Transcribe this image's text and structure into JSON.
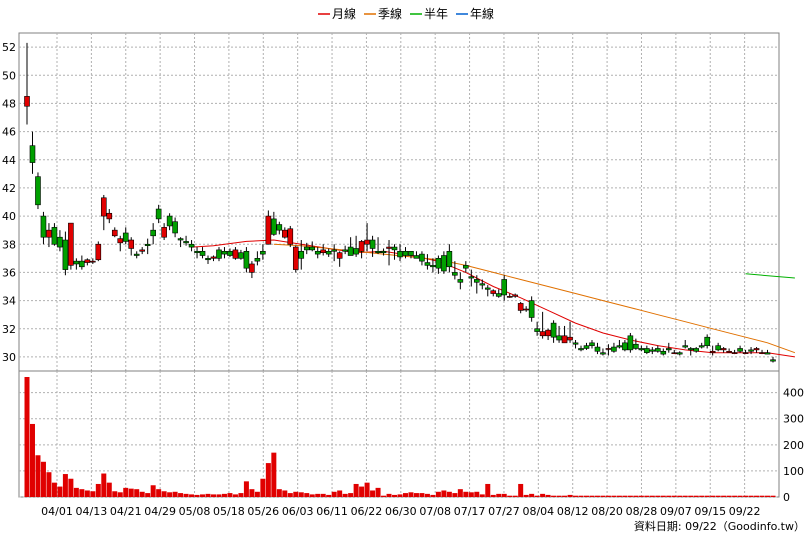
{
  "chart_data": {
    "type": "candlestick",
    "legend": {
      "position": "top-center",
      "items": [
        {
          "label": "月線",
          "color": "#e00000"
        },
        {
          "label": "季線",
          "color": "#e07000"
        },
        {
          "label": "半年",
          "color": "#00b000"
        },
        {
          "label": "年線",
          "color": "#0060d0"
        }
      ]
    },
    "x_tick_labels": [
      "04/01",
      "04/13",
      "04/21",
      "04/29",
      "05/08",
      "05/18",
      "05/26",
      "06/03",
      "06/11",
      "06/22",
      "06/30",
      "07/08",
      "07/17",
      "07/27",
      "08/04",
      "08/12",
      "08/20",
      "08/28",
      "09/07",
      "09/15",
      "09/22"
    ],
    "price_axis": {
      "min": 29,
      "max": 53,
      "ticks": [
        30,
        32,
        34,
        36,
        38,
        40,
        42,
        44,
        46,
        48,
        50,
        52
      ]
    },
    "volume_axis": {
      "min": 0,
      "max": 460,
      "ticks": [
        0,
        100,
        200,
        300,
        400
      ]
    },
    "grid": true,
    "colors": {
      "up": "#e00000",
      "down": "#00a000",
      "volume": "#e00000",
      "grid": "#b0b0b0",
      "plot_bg": "#ffffff"
    },
    "candles": [
      [
        47.8,
        52.3,
        46.5,
        48.5,
        460
      ],
      [
        45.0,
        46.0,
        43.0,
        43.8,
        280
      ],
      [
        42.8,
        43.1,
        40.5,
        40.8,
        160
      ],
      [
        40.0,
        40.3,
        38.0,
        38.5,
        135
      ],
      [
        38.5,
        39.5,
        37.8,
        39.0,
        95
      ],
      [
        39.2,
        39.5,
        37.9,
        38.0,
        55
      ],
      [
        38.5,
        39.0,
        37.5,
        37.8,
        40
      ],
      [
        38.3,
        38.9,
        35.8,
        36.2,
        88
      ],
      [
        36.5,
        39.5,
        36.2,
        39.5,
        70
      ],
      [
        36.8,
        37.0,
        36.2,
        36.6,
        35
      ],
      [
        36.8,
        37.2,
        36.2,
        36.4,
        30
      ],
      [
        36.7,
        37.0,
        36.5,
        36.9,
        25
      ],
      [
        36.8,
        37.0,
        36.6,
        36.8,
        22
      ],
      [
        36.9,
        38.2,
        36.8,
        38.0,
        50
      ],
      [
        40.0,
        41.5,
        39.0,
        41.3,
        90
      ],
      [
        39.8,
        40.5,
        39.5,
        40.2,
        55
      ],
      [
        38.6,
        39.2,
        38.5,
        39.0,
        22
      ],
      [
        38.1,
        38.6,
        37.5,
        38.4,
        18
      ],
      [
        38.8,
        39.2,
        38.0,
        38.2,
        35
      ],
      [
        37.7,
        38.5,
        37.2,
        38.3,
        32
      ],
      [
        37.3,
        37.5,
        37.0,
        37.2,
        30
      ],
      [
        37.5,
        37.8,
        37.3,
        37.6,
        20
      ],
      [
        38.0,
        38.4,
        37.3,
        37.9,
        15
      ],
      [
        39.0,
        39.5,
        38.0,
        38.6,
        45
      ],
      [
        40.5,
        40.8,
        39.5,
        39.8,
        30
      ],
      [
        38.5,
        39.5,
        38.3,
        39.2,
        22
      ],
      [
        40.0,
        40.2,
        39.0,
        39.3,
        18
      ],
      [
        39.6,
        39.9,
        38.5,
        38.8,
        20
      ],
      [
        38.4,
        38.5,
        37.8,
        38.3,
        15
      ],
      [
        38.2,
        38.6,
        37.9,
        38.1,
        12
      ],
      [
        38.0,
        38.3,
        37.5,
        37.8,
        10
      ],
      [
        37.5,
        37.8,
        37.0,
        37.4,
        8
      ],
      [
        37.5,
        37.8,
        37.0,
        37.2,
        10
      ],
      [
        37.0,
        37.2,
        36.6,
        36.9,
        12
      ],
      [
        37.0,
        37.2,
        36.8,
        37.1,
        10
      ],
      [
        37.6,
        37.8,
        36.8,
        37.0,
        10
      ],
      [
        37.5,
        37.8,
        37.0,
        37.3,
        12
      ],
      [
        37.5,
        37.7,
        37.1,
        37.2,
        15
      ],
      [
        37.0,
        37.8,
        36.9,
        37.6,
        10
      ],
      [
        37.4,
        37.6,
        36.9,
        37.0,
        15
      ],
      [
        37.5,
        37.8,
        36.0,
        36.3,
        60
      ],
      [
        36.0,
        36.8,
        35.6,
        36.6,
        30
      ],
      [
        37.0,
        37.5,
        36.5,
        36.8,
        20
      ],
      [
        37.5,
        38.0,
        36.9,
        37.3,
        70
      ],
      [
        38.0,
        40.4,
        38.0,
        40.0,
        130
      ],
      [
        39.8,
        40.3,
        38.6,
        38.7,
        170
      ],
      [
        39.4,
        39.6,
        38.7,
        39.0,
        30
      ],
      [
        38.5,
        39.2,
        38.4,
        39.0,
        25
      ],
      [
        38.0,
        39.3,
        37.8,
        39.1,
        15
      ],
      [
        36.2,
        37.9,
        36.0,
        37.8,
        20
      ],
      [
        37.5,
        38.3,
        36.2,
        37.0,
        18
      ],
      [
        37.8,
        38.1,
        37.3,
        37.6,
        15
      ],
      [
        37.8,
        38.2,
        37.5,
        37.6,
        10
      ],
      [
        37.5,
        37.8,
        37.0,
        37.3,
        12
      ],
      [
        37.4,
        38.0,
        37.2,
        37.6,
        12
      ],
      [
        37.5,
        37.7,
        37.1,
        37.3,
        8
      ],
      [
        37.6,
        38.0,
        36.8,
        37.5,
        20
      ],
      [
        37.0,
        37.5,
        36.4,
        37.4,
        25
      ],
      [
        37.6,
        37.9,
        37.3,
        37.5,
        12
      ],
      [
        37.8,
        38.5,
        37.2,
        37.2,
        15
      ],
      [
        37.7,
        38.6,
        37.1,
        37.3,
        50
      ],
      [
        37.5,
        38.3,
        37.0,
        38.2,
        40
      ],
      [
        38.0,
        39.5,
        37.5,
        38.3,
        55
      ],
      [
        38.3,
        38.6,
        37.1,
        37.7,
        25
      ],
      [
        37.5,
        38.5,
        37.3,
        37.4,
        35
      ],
      [
        37.5,
        37.7,
        37.2,
        37.4,
        5
      ],
      [
        37.7,
        38.3,
        36.5,
        37.8,
        12
      ],
      [
        37.8,
        38.0,
        36.9,
        37.6,
        8
      ],
      [
        37.5,
        38.0,
        36.8,
        37.1,
        10
      ],
      [
        37.5,
        37.8,
        37.0,
        37.2,
        15
      ],
      [
        37.5,
        37.5,
        37.0,
        37.2,
        18
      ],
      [
        37.2,
        37.5,
        37.0,
        37.0,
        15
      ],
      [
        37.3,
        37.5,
        36.5,
        36.8,
        15
      ],
      [
        36.7,
        37.3,
        36.2,
        36.5,
        12
      ],
      [
        36.5,
        37.0,
        36.0,
        36.4,
        8
      ],
      [
        37.0,
        37.2,
        35.9,
        36.3,
        20
      ],
      [
        37.2,
        37.5,
        35.9,
        36.1,
        25
      ],
      [
        37.5,
        38.0,
        36.0,
        36.4,
        20
      ],
      [
        36.0,
        36.8,
        35.5,
        35.8,
        15
      ],
      [
        35.5,
        36.0,
        34.8,
        35.3,
        30
      ],
      [
        36.5,
        36.8,
        36.0,
        36.3,
        20
      ],
      [
        35.7,
        36.2,
        35.0,
        35.6,
        18
      ],
      [
        35.5,
        35.8,
        34.5,
        35.3,
        20
      ],
      [
        35.2,
        35.5,
        34.8,
        35.1,
        10
      ],
      [
        34.9,
        35.1,
        34.3,
        34.8,
        50
      ],
      [
        34.5,
        34.8,
        34.3,
        34.7,
        8
      ],
      [
        34.5,
        34.8,
        34.2,
        34.3,
        12
      ],
      [
        35.5,
        35.8,
        34.0,
        34.4,
        12
      ],
      [
        34.3,
        34.5,
        34.2,
        34.3,
        5
      ],
      [
        34.3,
        34.5,
        34.2,
        34.4,
        5
      ],
      [
        33.3,
        33.9,
        33.1,
        33.8,
        50
      ],
      [
        33.4,
        33.6,
        33.2,
        33.4,
        8
      ],
      [
        34.0,
        34.3,
        32.5,
        32.8,
        12
      ],
      [
        32.0,
        32.5,
        31.5,
        31.8,
        5
      ],
      [
        31.5,
        33.2,
        31.3,
        31.8,
        12
      ],
      [
        31.5,
        32.0,
        31.2,
        31.9,
        8
      ],
      [
        32.4,
        32.6,
        31.0,
        31.4,
        5
      ],
      [
        31.5,
        32.2,
        31.0,
        31.2,
        5
      ],
      [
        31.0,
        32.2,
        31.0,
        31.5,
        5
      ],
      [
        31.2,
        32.5,
        31.0,
        31.4,
        8
      ],
      [
        31.0,
        31.2,
        30.6,
        30.9,
        5
      ],
      [
        30.6,
        30.8,
        30.4,
        30.5,
        5
      ],
      [
        30.8,
        31.0,
        30.5,
        30.6,
        5
      ],
      [
        31.0,
        31.2,
        30.6,
        30.8,
        5
      ],
      [
        30.7,
        31.0,
        30.2,
        30.4,
        5
      ],
      [
        30.3,
        30.6,
        30.1,
        30.2,
        5
      ],
      [
        30.6,
        30.9,
        30.1,
        30.6,
        5
      ],
      [
        30.7,
        31.0,
        30.3,
        30.4,
        5
      ],
      [
        30.8,
        31.2,
        30.6,
        30.7,
        5
      ],
      [
        31.0,
        31.2,
        30.4,
        30.5,
        5
      ],
      [
        31.5,
        31.7,
        30.3,
        30.5,
        5
      ],
      [
        30.9,
        31.3,
        30.5,
        30.6,
        5
      ],
      [
        30.6,
        30.8,
        30.4,
        30.5,
        5
      ],
      [
        30.6,
        30.8,
        30.2,
        30.3,
        5
      ],
      [
        30.5,
        30.7,
        30.2,
        30.4,
        5
      ],
      [
        30.6,
        30.8,
        30.3,
        30.4,
        5
      ],
      [
        30.4,
        30.6,
        30.1,
        30.2,
        5
      ],
      [
        30.6,
        31.0,
        30.3,
        30.5,
        5
      ],
      [
        30.3,
        30.5,
        30.2,
        30.3,
        5
      ],
      [
        30.3,
        30.4,
        30.1,
        30.2,
        5
      ],
      [
        30.8,
        31.2,
        30.6,
        30.7,
        5
      ],
      [
        30.6,
        30.7,
        30.1,
        30.5,
        5
      ],
      [
        30.6,
        30.7,
        30.3,
        30.4,
        5
      ],
      [
        30.8,
        31.0,
        30.6,
        30.7,
        5
      ],
      [
        31.4,
        31.6,
        30.6,
        30.8,
        5
      ],
      [
        30.3,
        30.8,
        30.1,
        30.4,
        5
      ],
      [
        30.8,
        31.0,
        30.4,
        30.5,
        5
      ],
      [
        30.5,
        30.7,
        30.3,
        30.6,
        5
      ],
      [
        30.4,
        30.6,
        30.3,
        30.4,
        5
      ],
      [
        30.3,
        30.5,
        30.2,
        30.3,
        5
      ],
      [
        30.6,
        30.8,
        30.3,
        30.4,
        5
      ],
      [
        30.3,
        30.5,
        30.2,
        30.3,
        5
      ],
      [
        30.5,
        30.7,
        30.2,
        30.4,
        5
      ],
      [
        30.5,
        30.7,
        30.3,
        30.6,
        5
      ],
      [
        30.3,
        30.5,
        30.2,
        30.3,
        5
      ],
      [
        30.3,
        30.5,
        30.2,
        30.2,
        5
      ],
      [
        29.8,
        30.0,
        29.6,
        29.7,
        5
      ]
    ],
    "moving_averages": {
      "月線": [
        [
          30,
          37.8
        ],
        [
          34,
          37.9
        ],
        [
          40,
          38.2
        ],
        [
          45,
          38.3
        ],
        [
          50,
          38.0
        ],
        [
          55,
          37.7
        ],
        [
          60,
          37.4
        ],
        [
          65,
          37.5
        ],
        [
          70,
          37.2
        ],
        [
          75,
          36.8
        ],
        [
          80,
          36.0
        ],
        [
          85,
          35.0
        ],
        [
          90,
          34.2
        ],
        [
          95,
          33.3
        ],
        [
          100,
          32.4
        ],
        [
          105,
          31.7
        ],
        [
          110,
          31.2
        ],
        [
          115,
          30.8
        ],
        [
          120,
          30.5
        ],
        [
          125,
          30.3
        ],
        [
          130,
          30.3
        ],
        [
          135,
          30.3
        ],
        [
          140,
          30.0
        ]
      ],
      "季線": [
        [
          45,
          38.0
        ],
        [
          50,
          37.9
        ],
        [
          55,
          37.7
        ],
        [
          60,
          37.5
        ],
        [
          65,
          37.3
        ],
        [
          70,
          37.1
        ],
        [
          75,
          36.9
        ],
        [
          80,
          36.5
        ],
        [
          85,
          36.0
        ],
        [
          90,
          35.5
        ],
        [
          95,
          35.0
        ],
        [
          100,
          34.5
        ],
        [
          105,
          34.0
        ],
        [
          110,
          33.5
        ],
        [
          115,
          33.0
        ],
        [
          120,
          32.5
        ],
        [
          125,
          32.0
        ],
        [
          130,
          31.5
        ],
        [
          135,
          31.0
        ],
        [
          140,
          30.3
        ]
      ],
      "半年": [
        [
          131,
          35.9
        ],
        [
          140,
          35.6
        ]
      ],
      "年線": []
    }
  },
  "footer": {
    "source": "資料日期: 09/22（Goodinfo.tw）"
  }
}
